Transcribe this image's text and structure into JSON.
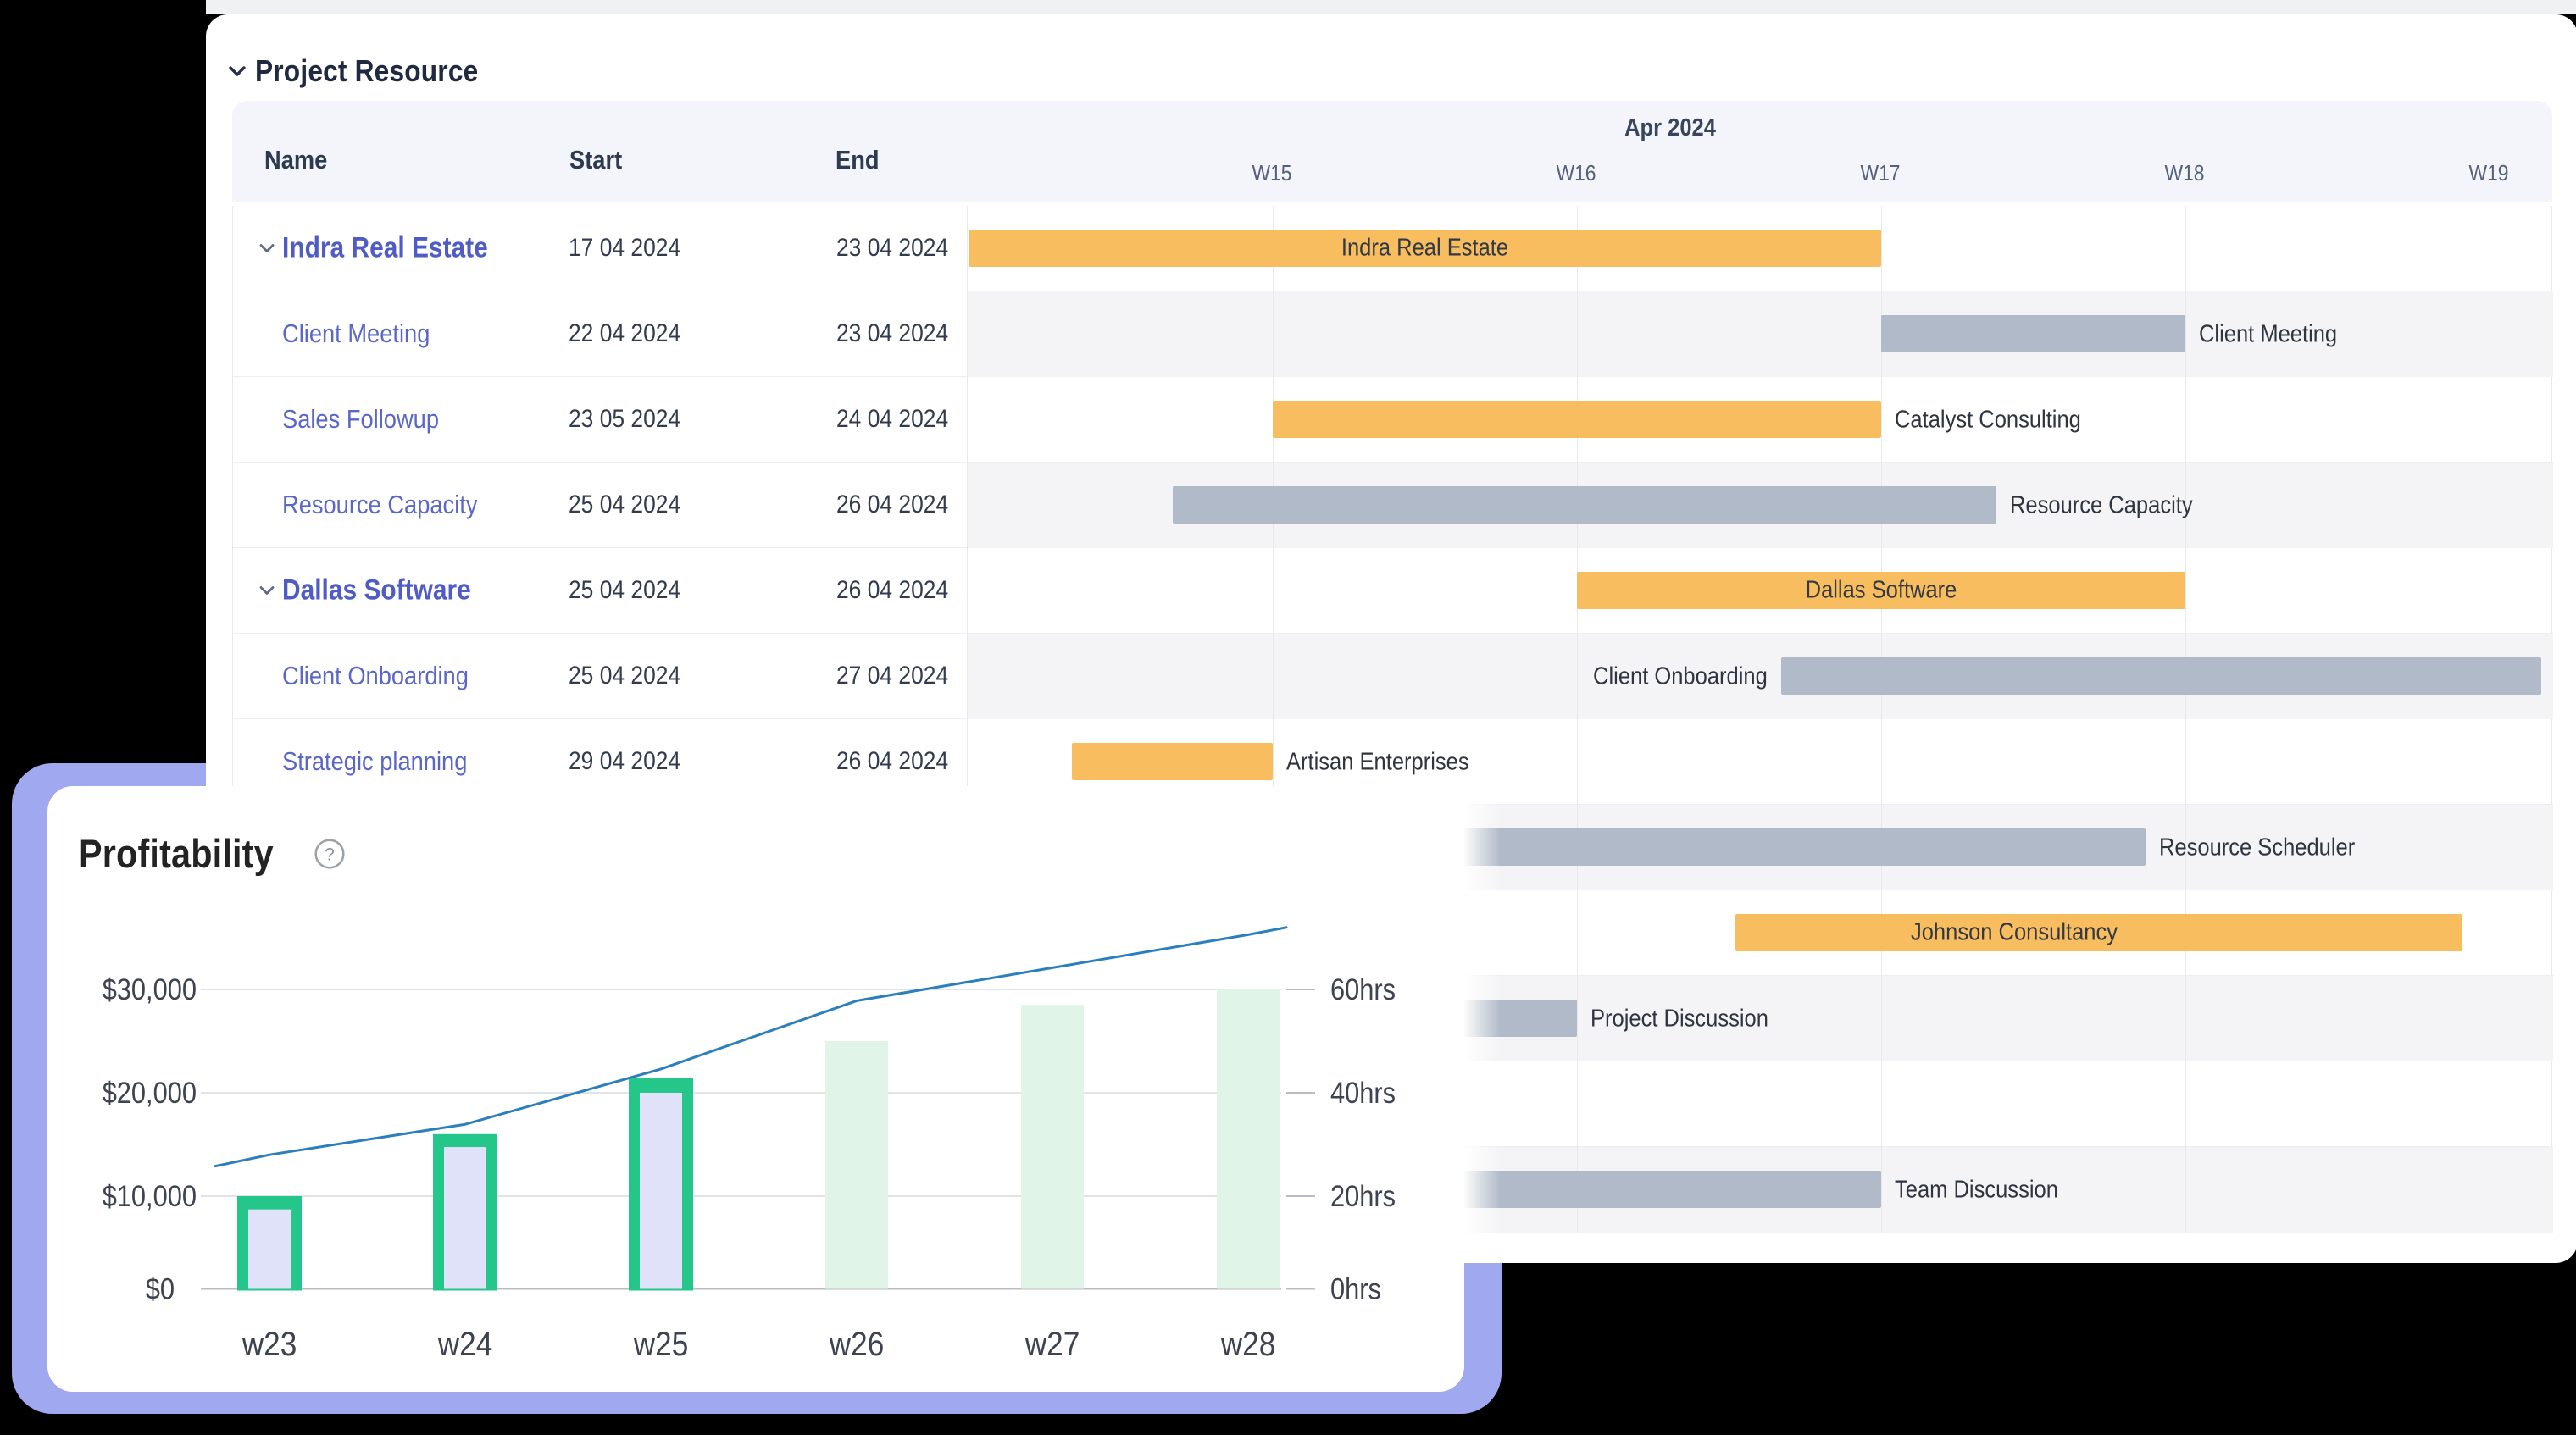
{
  "page": {
    "background_color": "#000000",
    "top_strip_color": "#f0f1f3",
    "glow_color": "#a0a8ef"
  },
  "gantt": {
    "title": "Project Resource",
    "columns": {
      "name": "Name",
      "start": "Start",
      "end": "End"
    },
    "timeline": {
      "month_label": "Apr 2024",
      "week_labels": [
        "W15",
        "W16",
        "W17",
        "W18",
        "W19"
      ]
    },
    "colors": {
      "project_bar": "#f7bd5f",
      "task_bar": "#b0bac9",
      "header_bg": "#f3f5fb",
      "row_stripe": "#f4f4f6",
      "parent_text": "#4f5cc4",
      "child_text": "#5b67c8"
    },
    "rows": [
      {
        "name": "Indra Real Estate",
        "type": "parent",
        "start": "17 04 2024",
        "end": "23 04 2024",
        "bar": {
          "kind": "project",
          "from_week": -1.0,
          "to_week": 2.0,
          "label": "Indra Real Estate",
          "label_pos": "inside"
        }
      },
      {
        "name": "Client Meeting",
        "type": "child",
        "start": "22 04 2024",
        "end": "23 04 2024",
        "bar": {
          "kind": "task",
          "from_week": 2.0,
          "to_week": 3.0,
          "label": "Client Meeting",
          "label_pos": "right"
        }
      },
      {
        "name": "Sales Followup",
        "type": "child",
        "start": "23 05 2024",
        "end": "24 04 2024",
        "bar": {
          "kind": "project",
          "from_week": 0.0,
          "to_week": 2.0,
          "label": "Catalyst Consulting",
          "label_pos": "right"
        }
      },
      {
        "name": "Resource Capacity",
        "type": "child",
        "start": "25 04 2024",
        "end": "26 04 2024",
        "bar": {
          "kind": "task",
          "from_week": -0.33,
          "to_week": 2.38,
          "label": "Resource Capacity",
          "label_pos": "right"
        }
      },
      {
        "name": "Dallas Software",
        "type": "parent",
        "start": "25 04 2024",
        "end": "26 04 2024",
        "bar": {
          "kind": "project",
          "from_week": 1.0,
          "to_week": 3.0,
          "label": "Dallas Software",
          "label_pos": "inside"
        }
      },
      {
        "name": "Client Onboarding",
        "type": "child",
        "start": "25 04 2024",
        "end": "27 04 2024",
        "bar": {
          "kind": "task",
          "from_week": 1.67,
          "to_week": 4.17,
          "label": "Client Onboarding",
          "label_pos": "left"
        }
      },
      {
        "name": "Strategic planning",
        "type": "child",
        "start": "29 04 2024",
        "end": "26 04 2024",
        "bar": {
          "kind": "project",
          "from_week": -0.66,
          "to_week": 0.0,
          "label": "Artisan Enterprises",
          "label_pos": "right"
        }
      },
      {
        "name": "",
        "type": "child",
        "start": "",
        "end": "",
        "bar": {
          "kind": "task",
          "from_week": 0.5,
          "to_week": 2.87,
          "label": "Resource Scheduler",
          "label_pos": "right"
        }
      },
      {
        "name": "",
        "type": "child",
        "start": "",
        "end": "",
        "bar": {
          "kind": "project",
          "from_week": 1.52,
          "to_week": 3.91,
          "label": "Johnson Consultancy",
          "label_pos": "inside",
          "label_shift": -100
        }
      },
      {
        "name": "",
        "type": "child",
        "start": "",
        "end": "",
        "bar": {
          "kind": "task",
          "from_week": 0.25,
          "to_week": 1.0,
          "label": "Project Discussion",
          "label_pos": "right"
        }
      },
      {
        "name": "",
        "type": "child",
        "start": "",
        "end": "",
        "bar": null
      },
      {
        "name": "",
        "type": "child",
        "start": "",
        "end": "",
        "bar": {
          "kind": "task",
          "from_week": 0.4,
          "to_week": 2.0,
          "label": "Team Discussion",
          "label_pos": "right"
        }
      }
    ]
  },
  "chart_data": {
    "type": "combo",
    "title": "Profitability",
    "help_icon": "question-circle-icon",
    "categories": [
      "w23",
      "w24",
      "w25",
      "w26",
      "w27",
      "w28"
    ],
    "series": [
      {
        "name": "revenue-actual",
        "type": "bar",
        "style": "outlined",
        "axis": "left",
        "values": [
          10000,
          16000,
          21400,
          null,
          null,
          null
        ],
        "inner_values": [
          8570,
          14750,
          20000,
          null,
          null,
          null
        ]
      },
      {
        "name": "hours-projected",
        "type": "bar",
        "style": "plain",
        "axis": "right",
        "values": [
          null,
          null,
          null,
          50,
          57,
          60
        ]
      },
      {
        "name": "cumulative-revenue",
        "type": "line",
        "axis": "left",
        "values": [
          14000,
          16950,
          22300,
          28900,
          32100,
          35300
        ],
        "edge_start_value": 12900,
        "edge_end_value": 36000
      }
    ],
    "left_axis": {
      "title": "",
      "tick_labels": [
        "$0",
        "$10,000",
        "$20,000",
        "$30,000"
      ],
      "tick_values": [
        0,
        10000,
        20000,
        30000
      ]
    },
    "right_axis": {
      "title": "",
      "tick_labels": [
        "0hrs",
        "20hrs",
        "40hrs",
        "60hrs"
      ],
      "tick_values": [
        0,
        20,
        40,
        60
      ]
    },
    "grid": true,
    "legend": false,
    "colors": {
      "bar_outline": "#24c789",
      "bar_fill": "#dfe2f9",
      "bar_plain": "#e1f4e8",
      "line": "#2b7fbc"
    }
  }
}
